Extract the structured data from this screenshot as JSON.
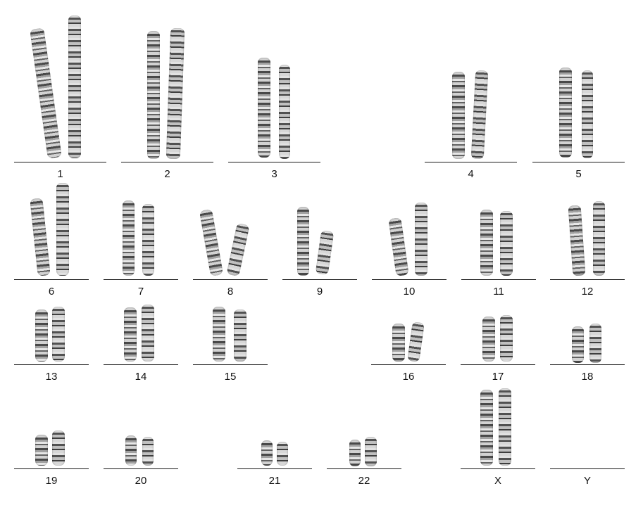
{
  "karyotype": {
    "chromosomes": [
      {
        "label": "1"
      },
      {
        "label": "2"
      },
      {
        "label": "3"
      },
      {
        "label": "4"
      },
      {
        "label": "5"
      },
      {
        "label": "6"
      },
      {
        "label": "7"
      },
      {
        "label": "8"
      },
      {
        "label": "9"
      },
      {
        "label": "10"
      },
      {
        "label": "11"
      },
      {
        "label": "12"
      },
      {
        "label": "13"
      },
      {
        "label": "14"
      },
      {
        "label": "15"
      },
      {
        "label": "16"
      },
      {
        "label": "17"
      },
      {
        "label": "18"
      },
      {
        "label": "19"
      },
      {
        "label": "20"
      },
      {
        "label": "21"
      },
      {
        "label": "22"
      },
      {
        "label": "X"
      },
      {
        "label": "Y"
      }
    ]
  }
}
